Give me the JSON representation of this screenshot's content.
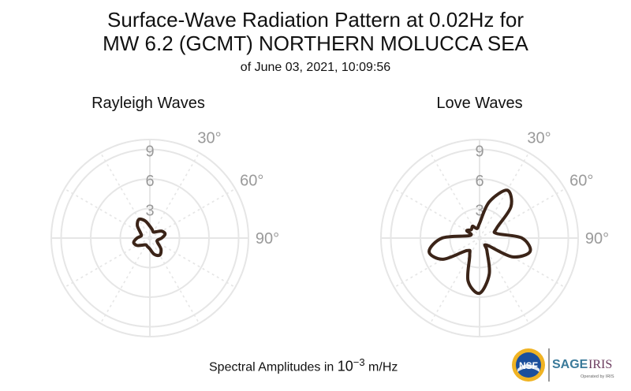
{
  "title_line1": "Surface-Wave Radiation Pattern at 0.02Hz for",
  "title_line2": "MW 6.2 (GCMT) NORTHERN MOLUCCA SEA",
  "title_line3": "of June 03, 2021, 10:09:56",
  "footer": {
    "prefix": "Spectral Amplitudes in ",
    "base": "10",
    "exponent": "−3",
    "suffix": " m/Hz"
  },
  "logos": {
    "nsf": "NSF",
    "sage": "SAGE",
    "iris": "IRIS",
    "operated": "Operated by IRIS"
  },
  "colors": {
    "pattern": "#3b2418",
    "grid": "#e6e6e6",
    "tick_label": "#9a9a9a"
  },
  "chart_data": [
    {
      "type": "polar",
      "title": "Rayleigh Waves",
      "r_ticks": [
        "3",
        "6",
        "9"
      ],
      "r_range": [
        0,
        10
      ],
      "angle_ticks": [
        "30°",
        "60°",
        "90°"
      ],
      "grid": true,
      "series": [
        {
          "theta_deg": [
            0,
            15,
            30,
            45,
            60,
            75,
            90,
            105,
            120,
            135,
            150,
            165,
            180,
            195,
            210,
            225,
            240,
            255,
            270,
            285,
            300,
            315,
            330,
            345
          ],
          "r": [
            1.2,
            0.9,
            0.7,
            0.9,
            1.4,
            1.6,
            1.2,
            0.8,
            0.9,
            1.6,
            2.0,
            1.7,
            1.1,
            0.9,
            0.8,
            1.0,
            1.5,
            1.7,
            1.3,
            0.9,
            1.1,
            1.8,
            2.2,
            1.8
          ]
        }
      ]
    },
    {
      "type": "polar",
      "title": "Love Waves",
      "r_ticks": [
        "3",
        "6",
        "9"
      ],
      "r_range": [
        0,
        10
      ],
      "angle_ticks": [
        "30°",
        "60°",
        "90°"
      ],
      "grid": true,
      "series": [
        {
          "theta_deg": [
            0,
            15,
            30,
            45,
            60,
            75,
            90,
            105,
            120,
            135,
            150,
            165,
            180,
            195,
            210,
            225,
            240,
            255,
            270,
            285,
            300,
            315,
            330,
            345
          ],
          "r": [
            1.5,
            3.8,
            5.6,
            4.5,
            2.0,
            1.8,
            4.3,
            5.3,
            3.8,
            1.0,
            1.5,
            3.8,
            5.6,
            4.5,
            2.0,
            1.8,
            4.3,
            5.3,
            3.8,
            1.0,
            1.5,
            1.2,
            1.4,
            1.0
          ]
        }
      ]
    }
  ]
}
